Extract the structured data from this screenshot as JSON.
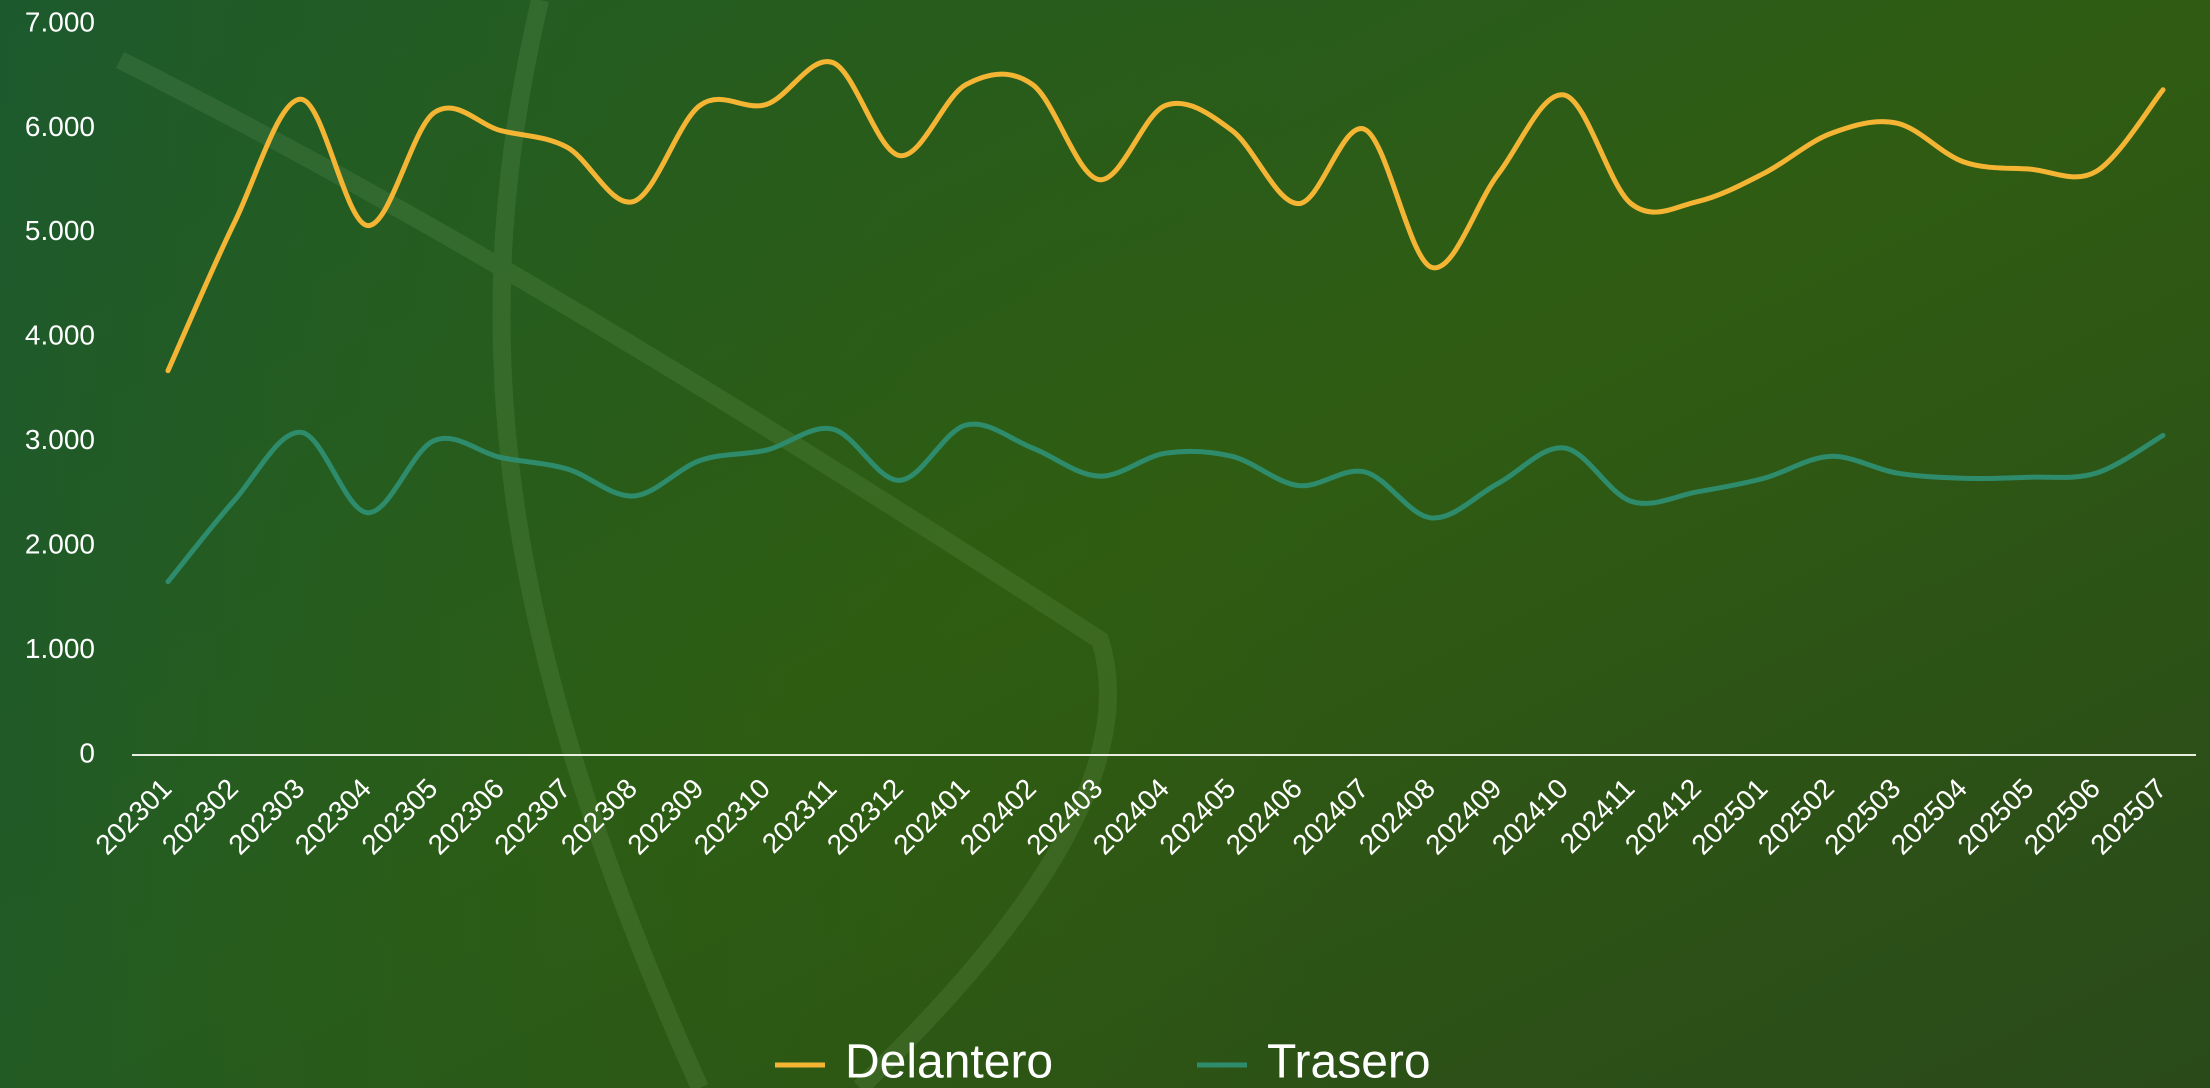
{
  "chart_data": {
    "type": "line",
    "categories": [
      "202301",
      "202302",
      "202303",
      "202304",
      "202305",
      "202306",
      "202307",
      "202308",
      "202309",
      "202310",
      "202311",
      "202312",
      "202401",
      "202402",
      "202403",
      "202404",
      "202405",
      "202406",
      "202407",
      "202408",
      "202409",
      "202410",
      "202411",
      "202412",
      "202501",
      "202502",
      "202503",
      "202504",
      "202505",
      "202506",
      "202507"
    ],
    "series": [
      {
        "name": "Delantero",
        "color": "#f4b534",
        "values": [
          3680,
          5100,
          6280,
          5070,
          6150,
          5980,
          5820,
          5300,
          6220,
          6230,
          6630,
          5740,
          6420,
          6420,
          5510,
          6220,
          5980,
          5280,
          5990,
          4670,
          5560,
          6320,
          5280,
          5300,
          5570,
          5950,
          6050,
          5680,
          5610,
          5590,
          6370
        ]
      },
      {
        "name": "Trasero",
        "color": "#2e8c6c",
        "values": [
          1660,
          2440,
          3090,
          2320,
          3010,
          2850,
          2740,
          2480,
          2820,
          2920,
          3120,
          2630,
          3160,
          2940,
          2670,
          2890,
          2860,
          2580,
          2710,
          2270,
          2600,
          2940,
          2430,
          2520,
          2650,
          2860,
          2700,
          2650,
          2660,
          2700,
          3060
        ]
      }
    ],
    "ylim": [
      0,
      7000
    ],
    "yticks": [
      0,
      {
        "value": 1000,
        "label": "1.000"
      },
      {
        "value": 2000,
        "label": "2.000"
      },
      {
        "value": 3000,
        "label": "3.000"
      },
      {
        "value": 4000,
        "label": "4.000"
      },
      {
        "value": 5000,
        "label": "5.000"
      },
      {
        "value": 6000,
        "label": "6.000"
      },
      {
        "value": 7000,
        "label": "7.000"
      }
    ],
    "smooth": true,
    "legend": "bottom"
  }
}
